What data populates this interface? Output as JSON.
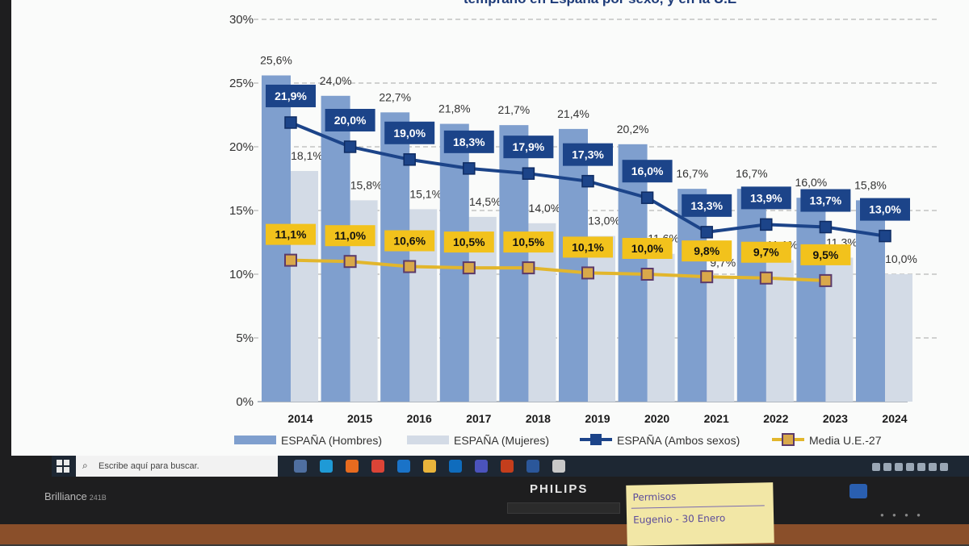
{
  "chart_data": {
    "type": "bar",
    "title": "temprano en España por sexo, y en la U.E",
    "categories": [
      "2014",
      "2015",
      "2016",
      "2017",
      "2018",
      "2019",
      "2020",
      "2021",
      "2022",
      "2023",
      "2024"
    ],
    "ylim": [
      0,
      30
    ],
    "yticks": [
      "0%",
      "5%",
      "10%",
      "15%",
      "20%",
      "25%",
      "30%"
    ],
    "grid": true,
    "legend_position": "bottom",
    "series": [
      {
        "name": "ESPAÑA (Hombres)",
        "kind": "bar",
        "color": "#7f9fce",
        "values": [
          25.6,
          24.0,
          22.7,
          21.8,
          21.7,
          21.4,
          20.2,
          16.7,
          16.7,
          16.0,
          15.8
        ],
        "labels": [
          "25,6%",
          "24,0%",
          "22,7%",
          "21,8%",
          "21,7%",
          "21,4%",
          "20,2%",
          "16,7%",
          "16,7%",
          "16,0%",
          "15,8%"
        ]
      },
      {
        "name": "ESPAÑA (Mujeres)",
        "kind": "bar",
        "color": "#d3dbe6",
        "values": [
          18.1,
          15.8,
          15.1,
          14.5,
          14.0,
          13.0,
          11.6,
          9.7,
          11.1,
          11.3,
          10.0
        ],
        "labels": [
          "18,1%",
          "15,8%",
          "15,1%",
          "14,5%",
          "14,0%",
          "13,0%",
          "11,6%",
          "9,7%",
          "11,1%",
          "11,3%",
          "10,0%"
        ]
      },
      {
        "name": "ESPAÑA (Ambos sexos)",
        "kind": "line",
        "color": "#1c4489",
        "values": [
          21.9,
          20.0,
          19.0,
          18.3,
          17.9,
          17.3,
          16.0,
          13.3,
          13.9,
          13.7,
          13.0
        ],
        "labels": [
          "21,9%",
          "20,0%",
          "19,0%",
          "18,3%",
          "17,9%",
          "17,3%",
          "16,0%",
          "13,3%",
          "13,9%",
          "13,7%",
          "13,0%"
        ]
      },
      {
        "name": "Media U.E.-27",
        "kind": "line",
        "color": "#e2b62c",
        "values": [
          11.1,
          11.0,
          10.6,
          10.5,
          10.5,
          10.1,
          10.0,
          9.8,
          9.7,
          9.5,
          null
        ],
        "labels": [
          "11,1%",
          "11,0%",
          "10,6%",
          "10,5%",
          "10,5%",
          "10,1%",
          "10,0%",
          "9,8%",
          "9,7%",
          "9,5%",
          ""
        ]
      }
    ]
  },
  "taskbar": {
    "search_placeholder": "Escribe aquí para buscar.",
    "app_icon_colors": [
      "#4f6fa0",
      "#1f9ad6",
      "#e76b1f",
      "#db4437",
      "#1a73c8",
      "#e9b43b",
      "#0f6cbd",
      "#4b53bc",
      "#c43e1c",
      "#2b579a",
      "#c8c8c8"
    ]
  },
  "monitor": {
    "brand_left": "Brilliance",
    "model": "241B",
    "brand_center": "PHILIPS"
  },
  "sticky_note": {
    "line1": "Permisos",
    "line2": "Eugenio - 30 Enero"
  }
}
